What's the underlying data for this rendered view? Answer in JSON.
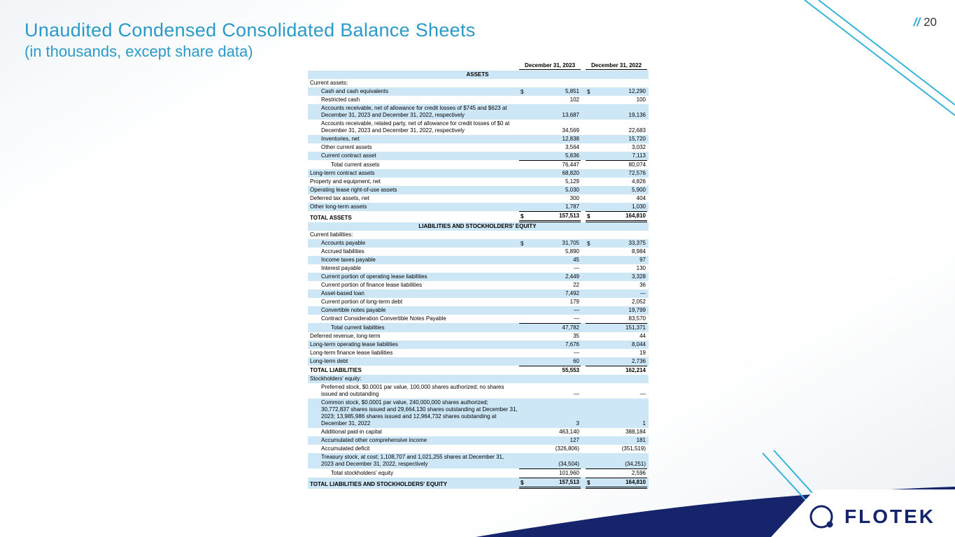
{
  "slide": {
    "title": "Unaudited Condensed Consolidated Balance Sheets",
    "subtitle": "(in thousands, except share data)",
    "page_prefix": "//",
    "page_number": "20"
  },
  "logo": {
    "text": "FLOTEK"
  },
  "colors": {
    "accent_teal": "#2b9ac9",
    "line_teal": "#35b4d9",
    "row_shade": "#cde7f6",
    "navy": "#16246b"
  },
  "table": {
    "columns": [
      "December 31, 2023",
      "December 31, 2022"
    ],
    "rows": [
      {
        "label": "ASSETS",
        "center": true,
        "shaded": true
      },
      {
        "label": "Current assets:",
        "indent": 0
      },
      {
        "label": "Cash and cash equivalents",
        "indent": 1,
        "d1": "$",
        "v1": "5,851",
        "d2": "$",
        "v2": "12,290",
        "shaded": true
      },
      {
        "label": "Restricted cash",
        "indent": 1,
        "v1": "102",
        "v2": "100"
      },
      {
        "label": "Accounts receivable, net of allowance for credit losses of $745 and $623 at December 31, 2023 and December 31, 2022, respectively",
        "indent": 1,
        "v1": "13,687",
        "v2": "19,136",
        "shaded": true
      },
      {
        "label": "Accounts receivable, related party, net of allowance for credit losses of $0 at December 31, 2023 and December 31, 2022, respectively",
        "indent": 1,
        "v1": "34,569",
        "v2": "22,683"
      },
      {
        "label": "Inventories, net",
        "indent": 1,
        "v1": "12,838",
        "v2": "15,720",
        "shaded": true
      },
      {
        "label": "Other current assets",
        "indent": 1,
        "v1": "3,564",
        "v2": "3,032"
      },
      {
        "label": "Current contract asset",
        "indent": 1,
        "v1": "5,836",
        "v2": "7,113",
        "shaded": true
      },
      {
        "label": "Total current assets",
        "indent": 2,
        "v1": "76,447",
        "v2": "80,074",
        "top": true
      },
      {
        "label": "Long-term contract assets",
        "indent": 0,
        "v1": "68,820",
        "v2": "72,576",
        "shaded": true
      },
      {
        "label": "Property and equipment, net",
        "indent": 0,
        "v1": "5,129",
        "v2": "4,826"
      },
      {
        "label": "Operating lease right-of-use assets",
        "indent": 0,
        "v1": "5,030",
        "v2": "5,900",
        "shaded": true
      },
      {
        "label": "Deferred tax assets, net",
        "indent": 0,
        "v1": "300",
        "v2": "404"
      },
      {
        "label": "Other long-term assets",
        "indent": 0,
        "v1": "1,787",
        "v2": "1,030",
        "shaded": true
      },
      {
        "label": "TOTAL ASSETS",
        "indent": 0,
        "bold": true,
        "d1": "$",
        "v1": "157,513",
        "d2": "$",
        "v2": "164,810",
        "top": true,
        "dbl": true
      },
      {
        "label": "LIABILITIES AND STOCKHOLDERS' EQUITY",
        "center": true,
        "shaded": true
      },
      {
        "label": "Current liabilities:",
        "indent": 0
      },
      {
        "label": "Accounts payable",
        "indent": 1,
        "d1": "$",
        "v1": "31,705",
        "d2": "$",
        "v2": "33,375",
        "shaded": true
      },
      {
        "label": "Accrued liabilities",
        "indent": 1,
        "v1": "5,890",
        "v2": "8,984"
      },
      {
        "label": "Income taxes payable",
        "indent": 1,
        "v1": "45",
        "v2": "97",
        "shaded": true
      },
      {
        "label": "Interest payable",
        "indent": 1,
        "v1": "—",
        "v2": "130"
      },
      {
        "label": "Current portion of operating lease liabilities",
        "indent": 1,
        "v1": "2,449",
        "v2": "3,328",
        "shaded": true
      },
      {
        "label": "Current portion of finance lease liabilities",
        "indent": 1,
        "v1": "22",
        "v2": "36"
      },
      {
        "label": "Asset-based loan",
        "indent": 1,
        "v1": "7,492",
        "v2": "—",
        "shaded": true
      },
      {
        "label": "Current portion of long-term debt",
        "indent": 1,
        "v1": "179",
        "v2": "2,052"
      },
      {
        "label": "Convertible notes payable",
        "indent": 1,
        "v1": "—",
        "v2": "19,799",
        "shaded": true
      },
      {
        "label": "Contract Consideration Convertible Notes Payable",
        "indent": 1,
        "v1": "—",
        "v2": "83,570"
      },
      {
        "label": "Total current liabilities",
        "indent": 2,
        "v1": "47,782",
        "v2": "151,371",
        "shaded": true,
        "top": true
      },
      {
        "label": "Deferred revenue, long-term",
        "indent": 0,
        "v1": "35",
        "v2": "44"
      },
      {
        "label": "Long-term operating lease liabilities",
        "indent": 0,
        "v1": "7,676",
        "v2": "8,044",
        "shaded": true
      },
      {
        "label": "Long-term finance lease liabilities",
        "indent": 0,
        "v1": "—",
        "v2": "19"
      },
      {
        "label": "Long-term debt",
        "indent": 0,
        "v1": "60",
        "v2": "2,736",
        "shaded": true
      },
      {
        "label": "TOTAL LIABILITIES",
        "indent": 0,
        "bold": true,
        "v1": "55,553",
        "v2": "162,214",
        "top": true
      },
      {
        "label": "Stockholders' equity:",
        "indent": 0,
        "shaded": true
      },
      {
        "label": "Preferred stock, $0.0001 par value, 100,000 shares authorized; no shares issued and outstanding",
        "indent": 1,
        "v1": "—",
        "v2": "—"
      },
      {
        "label": "Common stock, $0.0001 par value, 240,000,000 shares authorized; 30,772,837 shares issued and 29,664,130 shares outstanding at December 31, 2023; 13,985,986 shares issued and 12,964,732 shares outstanding at December 31, 2022",
        "indent": 1,
        "v1": "3",
        "v2": "1",
        "shaded": true
      },
      {
        "label": "Additional paid-in capital",
        "indent": 1,
        "v1": "463,140",
        "v2": "388,184"
      },
      {
        "label": "Accumulated other comprehensive income",
        "indent": 1,
        "v1": "127",
        "v2": "181",
        "shaded": true
      },
      {
        "label": "Accumulated deficit",
        "indent": 1,
        "v1": "(326,806)",
        "v2": "(351,519)"
      },
      {
        "label": "Treasury stock, at cost; 1,108,707 and 1,021,255 shares at December 31, 2023 and December 31, 2022, respectively",
        "indent": 1,
        "v1": "(34,504)",
        "v2": "(34,251)",
        "shaded": true
      },
      {
        "label": "Total stockholders' equity",
        "indent": 2,
        "v1": "101,960",
        "v2": "2,596",
        "top": true
      },
      {
        "label": "TOTAL LIABILITIES AND STOCKHOLDERS' EQUITY",
        "indent": 0,
        "bold": true,
        "d1": "$",
        "v1": "157,513",
        "d2": "$",
        "v2": "164,810",
        "shaded": true,
        "top": true,
        "dbl": true
      }
    ]
  }
}
